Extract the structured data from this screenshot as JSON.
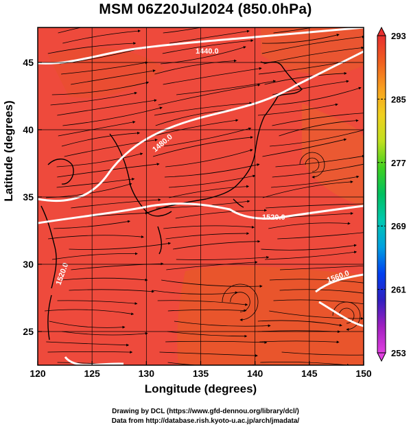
{
  "chart_data": {
    "type": "heatmap",
    "title": "MSM 06Z20Jul2024 (850.0hPa)",
    "xlabel": "Longitude (degrees)",
    "ylabel": "Latitude  (degrees)",
    "xlim": [
      120,
      150
    ],
    "ylim": [
      22.5,
      47.6
    ],
    "xticks": [
      120,
      125,
      130,
      135,
      140,
      145,
      150
    ],
    "yticks": [
      25,
      30,
      35,
      40,
      45
    ],
    "colorbar": {
      "min": 253,
      "max": 293,
      "ticks": [
        253,
        261,
        269,
        277,
        285,
        293
      ],
      "colors": [
        "#e040e0",
        "#a020c0",
        "#3020c0",
        "#0040f0",
        "#00a0e0",
        "#00c8b0",
        "#00c060",
        "#40d020",
        "#c0e020",
        "#f0d020",
        "#f8a020",
        "#f06020",
        "#e83030"
      ]
    },
    "field": "temperature (K)",
    "streamlines": "wind",
    "contours": {
      "quantity": "geopotential height",
      "labels": [
        "1440.0",
        "1480.0",
        "1520.0",
        "1560.0",
        "1520.0"
      ]
    },
    "grid": true
  },
  "footer": {
    "line1": "Drawing by DCL (https://www.gfd-dennou.org/library/dcl/)",
    "line2": "Data from http://database.rish.kyoto-u.ac.jp/arch/jmadata/"
  }
}
